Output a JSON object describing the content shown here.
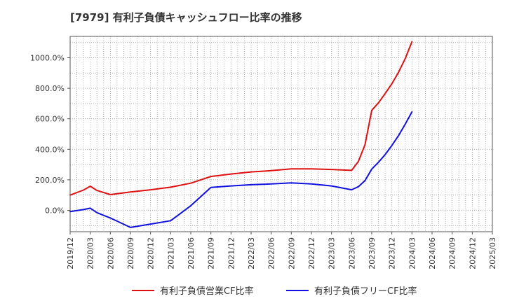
{
  "title": "[7979]  有利子負債キャッシュフロー比率の推移",
  "chart_data": {
    "type": "line",
    "title": "[7979]  有利子負債キャッシュフロー比率の推移",
    "xlabel": "",
    "ylabel": "",
    "x_ticks": [
      "2019/12",
      "2020/03",
      "2020/06",
      "2020/09",
      "2020/12",
      "2021/03",
      "2021/06",
      "2021/09",
      "2021/12",
      "2022/03",
      "2022/06",
      "2022/09",
      "2022/12",
      "2023/03",
      "2023/06",
      "2023/09",
      "2023/12",
      "2024/03",
      "2024/06",
      "2024/09",
      "2024/12",
      "2025/03"
    ],
    "y_ticks": [
      0,
      200,
      400,
      600,
      800,
      1000
    ],
    "y_tick_labels": [
      "0.0%",
      "200.0%",
      "400.0%",
      "600.0%",
      "800.0%",
      "1000.0%"
    ],
    "ylim": [
      -140,
      1140
    ],
    "grid": true,
    "legend_position": "bottom",
    "series": [
      {
        "name": "有利子負債営業CF比率",
        "color": "#dd1111",
        "points": [
          [
            "2019/12",
            100
          ],
          [
            "2020/02",
            133
          ],
          [
            "2020/03",
            158
          ],
          [
            "2020/04",
            130
          ],
          [
            "2020/06",
            103
          ],
          [
            "2020/09",
            120
          ],
          [
            "2020/12",
            135
          ],
          [
            "2021/03",
            152
          ],
          [
            "2021/06",
            178
          ],
          [
            "2021/09",
            222
          ],
          [
            "2021/12",
            238
          ],
          [
            "2022/03",
            252
          ],
          [
            "2022/06",
            260
          ],
          [
            "2022/09",
            272
          ],
          [
            "2022/12",
            272
          ],
          [
            "2023/03",
            268
          ],
          [
            "2023/06",
            262
          ],
          [
            "2023/07",
            320
          ],
          [
            "2023/08",
            430
          ],
          [
            "2023/09",
            655
          ],
          [
            "2023/10",
            705
          ],
          [
            "2023/11",
            765
          ],
          [
            "2023/12",
            830
          ],
          [
            "2024/01",
            905
          ],
          [
            "2024/02",
            995
          ],
          [
            "2024/03",
            1105
          ]
        ]
      },
      {
        "name": "有利子負債フリーCF比率",
        "color": "#1111dd",
        "points": [
          [
            "2019/12",
            -8
          ],
          [
            "2020/02",
            5
          ],
          [
            "2020/03",
            14
          ],
          [
            "2020/04",
            -15
          ],
          [
            "2020/06",
            -50
          ],
          [
            "2020/09",
            -112
          ],
          [
            "2020/12",
            -90
          ],
          [
            "2021/03",
            -68
          ],
          [
            "2021/06",
            30
          ],
          [
            "2021/09",
            150
          ],
          [
            "2021/12",
            160
          ],
          [
            "2022/03",
            168
          ],
          [
            "2022/06",
            173
          ],
          [
            "2022/09",
            180
          ],
          [
            "2022/12",
            173
          ],
          [
            "2023/03",
            160
          ],
          [
            "2023/06",
            135
          ],
          [
            "2023/07",
            155
          ],
          [
            "2023/08",
            195
          ],
          [
            "2023/09",
            270
          ],
          [
            "2023/10",
            315
          ],
          [
            "2023/11",
            365
          ],
          [
            "2023/12",
            425
          ],
          [
            "2024/01",
            490
          ],
          [
            "2024/02",
            565
          ],
          [
            "2024/03",
            645
          ]
        ]
      }
    ]
  }
}
